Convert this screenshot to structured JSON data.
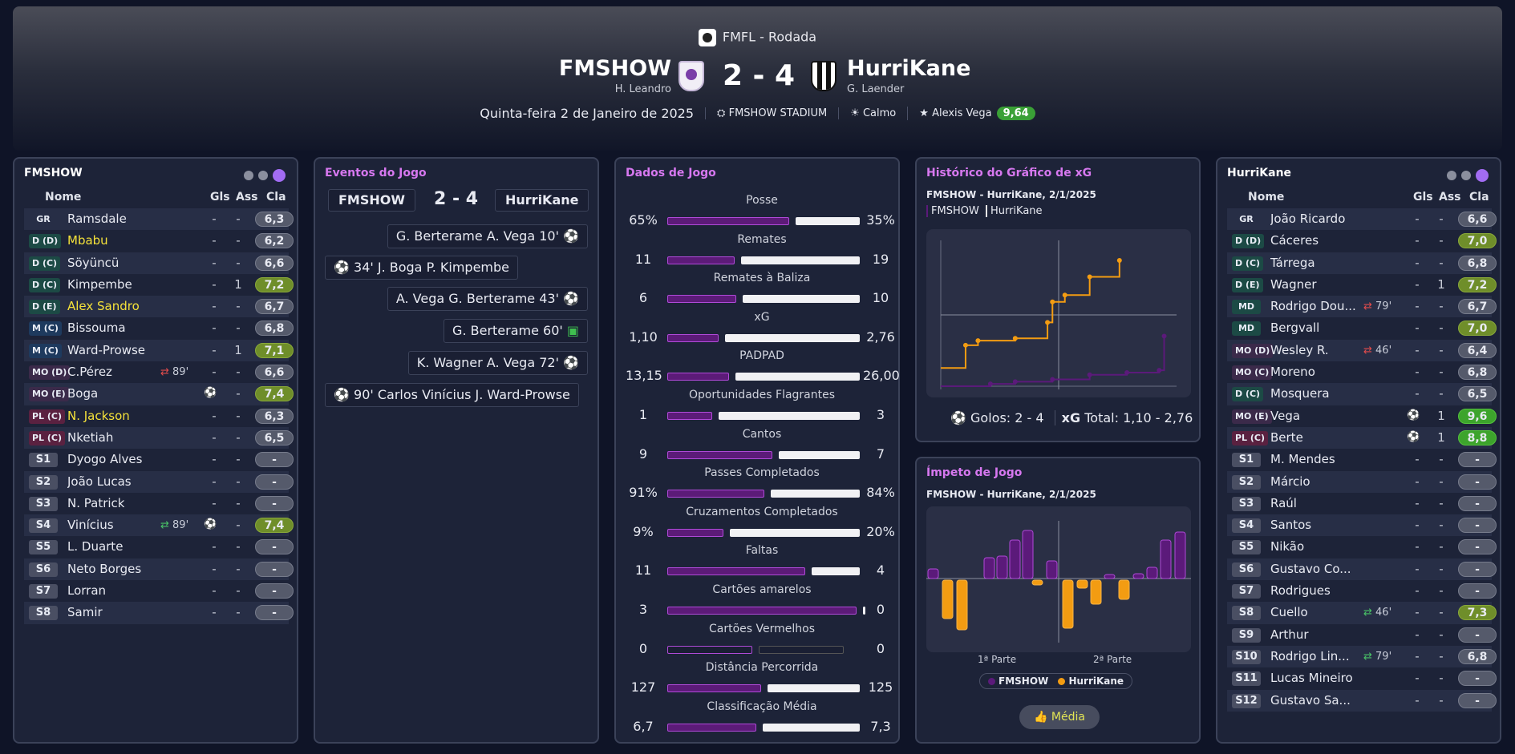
{
  "header": {
    "competition": "FMFL - Rodada",
    "home_team": "FMSHOW",
    "home_manager": "H. Leandro",
    "away_team": "HurriKane",
    "away_manager": "G. Laender",
    "score": "2 - 4",
    "date": "Quinta-feira 2 de Janeiro de 2025",
    "stadium": "FMSHOW STADIUM",
    "weather": "Calmo",
    "mvp_name": "Alexis Vega",
    "mvp_rating": "9,64"
  },
  "home_panel": {
    "title": "FMSHOW",
    "cols": {
      "name": "Nome",
      "goals": "Gls",
      "assists": "Ass",
      "rating": "Cla"
    },
    "players": [
      {
        "pos": "GR",
        "name": "Ramsdale",
        "gl": "-",
        "as": "-",
        "rt": "6,3",
        "type": "gk"
      },
      {
        "pos": "D (D)",
        "name": "Mbabu",
        "gl": "-",
        "as": "-",
        "rt": "6,2",
        "type": "def",
        "hl": true
      },
      {
        "pos": "D (C)",
        "name": "Söyüncü",
        "gl": "-",
        "as": "-",
        "rt": "6,6",
        "type": "def"
      },
      {
        "pos": "D (C)",
        "name": "Kimpembe",
        "gl": "-",
        "as": "1",
        "rt": "7,2",
        "type": "def",
        "rc": "g1"
      },
      {
        "pos": "D (E)",
        "name": "Alex Sandro",
        "gl": "-",
        "as": "-",
        "rt": "6,7",
        "type": "def",
        "hl": true
      },
      {
        "pos": "M (C)",
        "name": "Bissouma",
        "gl": "-",
        "as": "-",
        "rt": "6,8",
        "type": "mid"
      },
      {
        "pos": "M (C)",
        "name": "Ward-Prowse",
        "gl": "-",
        "as": "1",
        "rt": "7,1",
        "type": "mid",
        "rc": "g1"
      },
      {
        "pos": "MO (D)",
        "name": "C.Pérez",
        "gl": "-",
        "as": "-",
        "rt": "6,6",
        "type": "amc",
        "subout": "89'"
      },
      {
        "pos": "MO (E)",
        "name": "Boga",
        "gl": "",
        "as": "-",
        "rt": "7,4",
        "type": "amc",
        "rc": "g1",
        "goal": true
      },
      {
        "pos": "PL (C)",
        "name": "N. Jackson",
        "gl": "-",
        "as": "-",
        "rt": "6,3",
        "type": "st",
        "hl": true
      },
      {
        "pos": "PL (C)",
        "name": "Nketiah",
        "gl": "-",
        "as": "-",
        "rt": "6,5",
        "type": "st"
      },
      {
        "pos": "S1",
        "name": "Dyogo Alves",
        "gl": "-",
        "as": "-",
        "rt": "-",
        "type": "sub"
      },
      {
        "pos": "S2",
        "name": "João Lucas",
        "gl": "-",
        "as": "-",
        "rt": "-",
        "type": "sub"
      },
      {
        "pos": "S3",
        "name": "N. Patrick",
        "gl": "-",
        "as": "-",
        "rt": "-",
        "type": "sub"
      },
      {
        "pos": "S4",
        "name": "Vinícius",
        "gl": "",
        "as": "-",
        "rt": "7,4",
        "type": "sub",
        "rc": "g1",
        "subin": "89'",
        "goal": true
      },
      {
        "pos": "S5",
        "name": "L. Duarte",
        "gl": "-",
        "as": "-",
        "rt": "-",
        "type": "sub"
      },
      {
        "pos": "S6",
        "name": "Neto Borges",
        "gl": "-",
        "as": "-",
        "rt": "-",
        "type": "sub"
      },
      {
        "pos": "S7",
        "name": "Lorran",
        "gl": "-",
        "as": "-",
        "rt": "-",
        "type": "sub"
      },
      {
        "pos": "S8",
        "name": "Samir",
        "gl": "-",
        "as": "-",
        "rt": "-",
        "type": "sub"
      }
    ]
  },
  "away_panel": {
    "title": "HurriKane",
    "cols": {
      "name": "Nome",
      "goals": "Gls",
      "assists": "Ass",
      "rating": "Cla"
    },
    "players": [
      {
        "pos": "GR",
        "name": "João Ricardo",
        "gl": "-",
        "as": "-",
        "rt": "6,6",
        "type": "gk"
      },
      {
        "pos": "D (D)",
        "name": "Cáceres",
        "gl": "-",
        "as": "-",
        "rt": "7,0",
        "type": "def",
        "rc": "g1"
      },
      {
        "pos": "D (C)",
        "name": "Tárrega",
        "gl": "-",
        "as": "-",
        "rt": "6,8",
        "type": "def"
      },
      {
        "pos": "D (E)",
        "name": "Wagner",
        "gl": "-",
        "as": "1",
        "rt": "7,2",
        "type": "def",
        "rc": "g1"
      },
      {
        "pos": "MD",
        "name": "Rodrigo Dou...",
        "gl": "-",
        "as": "-",
        "rt": "6,7",
        "type": "def",
        "subout": "79'"
      },
      {
        "pos": "MD",
        "name": "Bergvall",
        "gl": "-",
        "as": "-",
        "rt": "7,0",
        "type": "def",
        "rc": "g1"
      },
      {
        "pos": "MO (D)",
        "name": "Wesley R.",
        "gl": "-",
        "as": "-",
        "rt": "6,4",
        "type": "amc",
        "subout": "46'"
      },
      {
        "pos": "MO (C)",
        "name": "Moreno",
        "gl": "-",
        "as": "-",
        "rt": "6,8",
        "type": "amc"
      },
      {
        "pos": "D (C)",
        "name": "Mosquera",
        "gl": "-",
        "as": "-",
        "rt": "6,5",
        "type": "def"
      },
      {
        "pos": "MO (E)",
        "name": "Vega",
        "gl": "",
        "as": "1",
        "rt": "9,6",
        "type": "amc",
        "rc": "g2",
        "goal": true
      },
      {
        "pos": "PL (C)",
        "name": "Berte",
        "gl": "",
        "as": "1",
        "rt": "8,8",
        "type": "st",
        "rc": "g2",
        "goal": true
      },
      {
        "pos": "S1",
        "name": "M. Mendes",
        "gl": "-",
        "as": "-",
        "rt": "-",
        "type": "sub"
      },
      {
        "pos": "S2",
        "name": "Márcio",
        "gl": "-",
        "as": "-",
        "rt": "-",
        "type": "sub"
      },
      {
        "pos": "S3",
        "name": "Raúl",
        "gl": "-",
        "as": "-",
        "rt": "-",
        "type": "sub"
      },
      {
        "pos": "S4",
        "name": "Santos",
        "gl": "-",
        "as": "-",
        "rt": "-",
        "type": "sub"
      },
      {
        "pos": "S5",
        "name": "Nikão",
        "gl": "-",
        "as": "-",
        "rt": "-",
        "type": "sub"
      },
      {
        "pos": "S6",
        "name": "Gustavo Co...",
        "gl": "-",
        "as": "-",
        "rt": "-",
        "type": "sub"
      },
      {
        "pos": "S7",
        "name": "Rodrigues",
        "gl": "-",
        "as": "-",
        "rt": "-",
        "type": "sub"
      },
      {
        "pos": "S8",
        "name": "Cuello",
        "gl": "-",
        "as": "-",
        "rt": "7,3",
        "type": "sub",
        "rc": "g1",
        "subin": "46'"
      },
      {
        "pos": "S9",
        "name": "Arthur",
        "gl": "-",
        "as": "-",
        "rt": "-",
        "type": "sub"
      },
      {
        "pos": "S10",
        "name": "Rodrigo Lin...",
        "gl": "-",
        "as": "-",
        "rt": "6,8",
        "type": "sub",
        "subin": "79'"
      },
      {
        "pos": "S11",
        "name": "Lucas Mineiro",
        "gl": "-",
        "as": "-",
        "rt": "-",
        "type": "sub"
      },
      {
        "pos": "S12",
        "name": "Gustavo Sa...",
        "gl": "-",
        "as": "-",
        "rt": "-",
        "type": "sub"
      }
    ]
  },
  "events": {
    "title": "Eventos do Jogo",
    "home": "FMSHOW",
    "away": "HurriKane",
    "score": "2 - 4",
    "list": [
      {
        "side": "away",
        "text": "G. Berterame  A. Vega 10'",
        "icon": "ball"
      },
      {
        "side": "home",
        "text": "34'  J. Boga  P. Kimpembe",
        "icon": "ball"
      },
      {
        "side": "away",
        "text": "A. Vega  G. Berterame 43'",
        "icon": "ball"
      },
      {
        "side": "away",
        "text": "G. Berterame 60'",
        "icon": "var"
      },
      {
        "side": "away",
        "text": "K. Wagner  A. Vega 72'",
        "icon": "ball"
      },
      {
        "side": "home",
        "text": "90'  Carlos Vinícius  J. Ward-Prowse",
        "icon": "ball"
      }
    ]
  },
  "stats": {
    "title": "Dados de Jogo",
    "rows": [
      {
        "label": "Posse",
        "home": "65%",
        "away": "35%",
        "h": 65,
        "a": 35
      },
      {
        "label": "Remates",
        "home": "11",
        "away": "19",
        "h": 11,
        "a": 19
      },
      {
        "label": "Remates à Baliza",
        "home": "6",
        "away": "10",
        "h": 6,
        "a": 10
      },
      {
        "label": "xG",
        "home": "1,10",
        "away": "2,76",
        "h": 1.1,
        "a": 2.76
      },
      {
        "label": "PADPAD",
        "home": "13,15",
        "away": "26,00",
        "h": 13.15,
        "a": 26.0
      },
      {
        "label": "Oportunidades Flagrantes",
        "home": "1",
        "away": "3",
        "h": 1,
        "a": 3
      },
      {
        "label": "Cantos",
        "home": "9",
        "away": "7",
        "h": 9,
        "a": 7
      },
      {
        "label": "Passes Completados",
        "home": "91%",
        "away": "84%",
        "h": 91,
        "a": 84
      },
      {
        "label": "Cruzamentos Completados",
        "home": "9%",
        "away": "20%",
        "h": 9,
        "a": 20
      },
      {
        "label": "Faltas",
        "home": "11",
        "away": "4",
        "h": 11,
        "a": 4
      },
      {
        "label": "Cartões amarelos",
        "home": "3",
        "away": "0",
        "h": 3,
        "a": 0
      },
      {
        "label": "Cartões Vermelhos",
        "home": "0",
        "away": "0",
        "h": 0,
        "a": 0
      },
      {
        "label": "Distância Percorrida",
        "home": "127",
        "away": "125",
        "h": 127,
        "a": 125
      },
      {
        "label": "Classificação Média",
        "home": "6,7",
        "away": "7,3",
        "h": 6.7,
        "a": 7.3
      }
    ]
  },
  "xg": {
    "title": "Histórico do Gráfico de xG",
    "subtitle": "FMSHOW - HurriKane, 2/1/2025",
    "legend_home": "FMSHOW",
    "legend_away": "HurriKane",
    "goals_label": "Golos:",
    "goals_value": "2 - 4",
    "xg_label": "xG",
    "xg_total": "Total: 1,10  -  2,76",
    "colors": {
      "home": "#5b1a7a",
      "away": "#f39c12"
    }
  },
  "momentum": {
    "title": "Ímpeto de Jogo",
    "subtitle": "FMSHOW - HurriKane, 2/1/2025",
    "first_half": "1ª Parte",
    "second_half": "2ª Parte",
    "legend_home": "FMSHOW",
    "legend_away": "HurriKane",
    "button": "Média"
  },
  "chart_data": {
    "type": "line",
    "title": "Histórico do Gráfico de xG",
    "series": [
      {
        "name": "FMSHOW",
        "x": [
          0,
          20,
          30,
          45,
          60,
          75,
          88,
          90
        ],
        "values": [
          0,
          0.05,
          0.1,
          0.15,
          0.25,
          0.3,
          0.35,
          1.1
        ]
      },
      {
        "name": "HurriKane",
        "x": [
          0,
          10,
          15,
          30,
          43,
          45,
          50,
          60,
          72
        ],
        "values": [
          0.4,
          0.9,
          1.0,
          1.05,
          1.4,
          1.85,
          2.0,
          2.4,
          2.76
        ]
      }
    ]
  }
}
